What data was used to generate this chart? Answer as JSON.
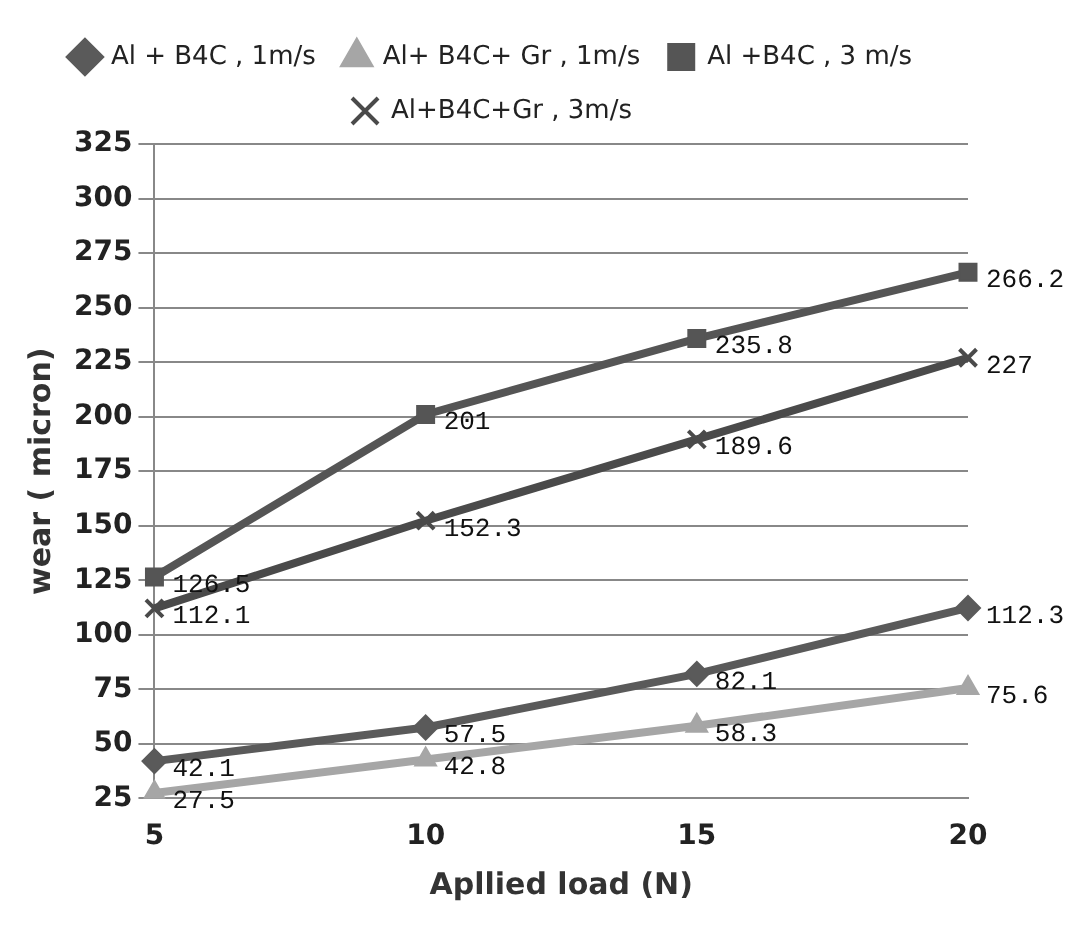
{
  "chart_data": {
    "type": "line",
    "xlabel": "Apllied load (N)",
    "ylabel": "wear ( micron)",
    "categories": [
      "5",
      "10",
      "15",
      "20"
    ],
    "series": [
      {
        "name": "Al + B4C , 1m/s",
        "color": "#5a5a5a",
        "marker": "diamond",
        "values": [
          42.1,
          57.5,
          82.1,
          112.3
        ]
      },
      {
        "name": "Al+ B4C+ Gr , 1m/s",
        "color": "#a6a6a6",
        "marker": "triangle",
        "values": [
          27.5,
          42.8,
          58.3,
          75.6
        ]
      },
      {
        "name": "Al +B4C , 3 m/s",
        "color": "#555555",
        "marker": "square",
        "values": [
          126.5,
          201,
          235.8,
          266.2
        ]
      },
      {
        "name": "Al+B4C+Gr , 3m/s",
        "color": "#4a4a4a",
        "marker": "cross",
        "values": [
          112.1,
          152.3,
          189.6,
          227
        ]
      }
    ],
    "ylim": [
      25,
      325
    ],
    "yticks": [
      25,
      50,
      75,
      100,
      125,
      150,
      175,
      200,
      225,
      250,
      275,
      300,
      325
    ],
    "grid": "y",
    "legend": "top",
    "data_labels": true
  }
}
